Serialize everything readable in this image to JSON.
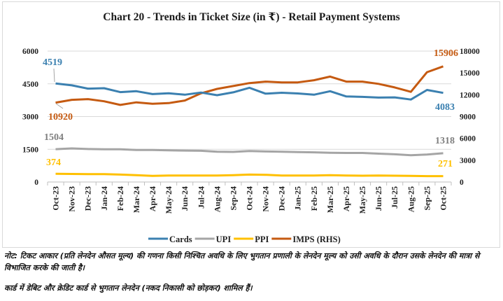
{
  "chart_data": {
    "type": "line",
    "title": "Chart 20 - Trends in Ticket Size (in ₹) - Retail Payment Systems",
    "categories": [
      "Oct-23",
      "Nov-23",
      "Dec-23",
      "Jan-24",
      "Feb-24",
      "Mar-24",
      "Apr-24",
      "May-24",
      "Jun-24",
      "Jul-24",
      "Aug-24",
      "Sep-24",
      "Oct-24",
      "Nov-24",
      "Dec-24",
      "Jan-25",
      "Feb-25",
      "Mar-25",
      "Apr-25",
      "May-25",
      "Jun-25",
      "Jul-25",
      "Aug-25",
      "Sep-25",
      "Oct-25"
    ],
    "y_left": {
      "range": [
        0,
        6000
      ],
      "ticks": [
        "0",
        "1500",
        "3000",
        "4500",
        "6000"
      ]
    },
    "y_right": {
      "range": [
        0,
        18000
      ],
      "ticks": [
        "0",
        "3000",
        "6000",
        "9000",
        "12000",
        "15000",
        "18000"
      ]
    },
    "grid": true,
    "legend": "bottom",
    "series": [
      {
        "name": "Cards",
        "axis": "left",
        "color": "#3b80b0",
        "values": [
          4519,
          4430,
          4280,
          4300,
          4120,
          4160,
          4030,
          4070,
          4000,
          4100,
          3980,
          4110,
          4320,
          4050,
          4090,
          4060,
          4000,
          4160,
          3920,
          3900,
          3870,
          3880,
          3780,
          4220,
          4083
        ],
        "first_label": "4519",
        "last_label": "4083"
      },
      {
        "name": "UPI",
        "axis": "left",
        "color": "#a5a5a5",
        "values": [
          1504,
          1540,
          1510,
          1500,
          1500,
          1470,
          1470,
          1450,
          1440,
          1430,
          1390,
          1380,
          1420,
          1400,
          1390,
          1370,
          1360,
          1340,
          1330,
          1330,
          1300,
          1270,
          1230,
          1260,
          1318
        ],
        "first_label": "1504",
        "last_label": "1318"
      },
      {
        "name": "PPI",
        "axis": "left",
        "color": "#ffc000",
        "values": [
          374,
          370,
          360,
          360,
          340,
          310,
          280,
          300,
          300,
          300,
          300,
          310,
          340,
          330,
          300,
          300,
          300,
          310,
          300,
          290,
          300,
          290,
          280,
          270,
          271
        ],
        "first_label": "374",
        "last_label": "271"
      },
      {
        "name": "IMPS (RHS)",
        "axis": "right",
        "color": "#c55a11",
        "values": [
          10920,
          11300,
          11400,
          11100,
          10600,
          10950,
          10750,
          10850,
          11200,
          12200,
          12800,
          13200,
          13600,
          13800,
          13700,
          13700,
          14000,
          14500,
          13800,
          13800,
          13500,
          13000,
          12400,
          15100,
          15906
        ],
        "first_label": "10920",
        "last_label": "15906"
      }
    ]
  },
  "notes": [
    "नोट: टिकट आकार (प्रति लेनदेन औसत मूल्य) की गणना किसी निश्चित अवधि के लिए भुगतान प्रणाली के लेनदेन मूल्य को उसी अवधि के दौरान उसके लेनदेन की मात्रा से विभाजित करके की जाती है।",
    "कार्ड में डेबिट और क्रेडिट कार्ड से भुगतान लेनदेन (नकद निकासी को छोड़कर) शामिल हैं।"
  ]
}
